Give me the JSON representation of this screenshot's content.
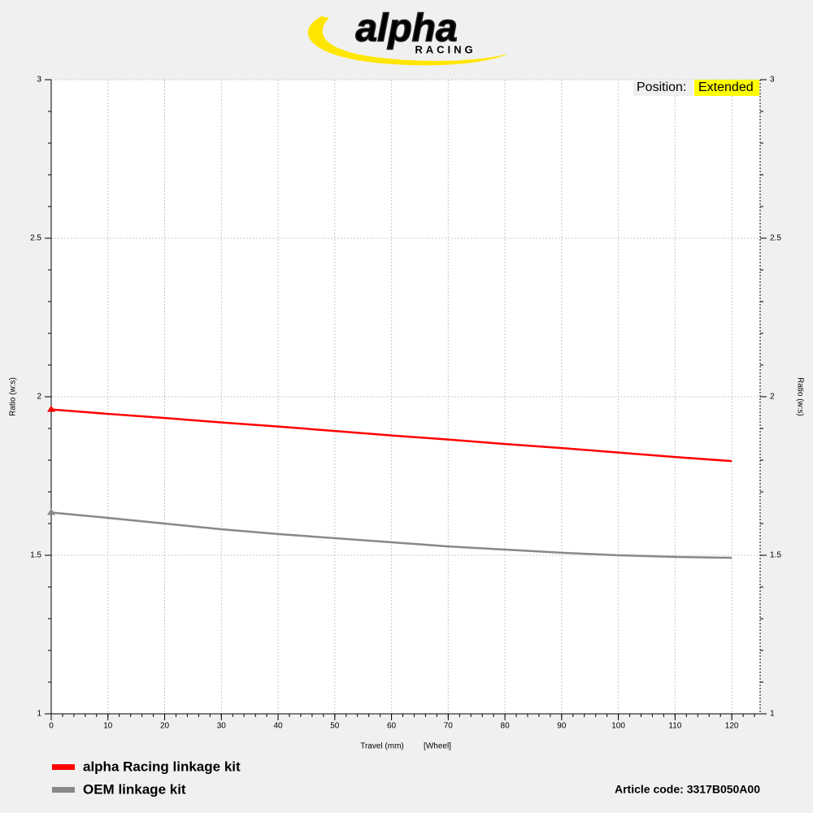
{
  "logo": {
    "name": "alpha",
    "sub": "RACING"
  },
  "position": {
    "label": "Position:",
    "value": "Extended"
  },
  "legend_entries": [
    "alpha Racing linkage kit",
    "OEM linkage kit"
  ],
  "article_code": "Article code: 3317B050A00",
  "chart_data": {
    "type": "line",
    "x_label": "Travel (mm)",
    "x_label_note": "[Wheel]",
    "y_label": "Ratio (w:s)",
    "x": [
      0,
      10,
      20,
      30,
      40,
      50,
      60,
      70,
      80,
      90,
      100,
      110,
      120
    ],
    "series": [
      {
        "name": "alpha Racing linkage kit",
        "color": "#ff0000",
        "values": [
          1.96,
          1.946,
          1.933,
          1.919,
          1.906,
          1.892,
          1.878,
          1.865,
          1.851,
          1.838,
          1.824,
          1.81,
          1.797
        ]
      },
      {
        "name": "OEM linkage kit",
        "color": "#888888",
        "values": [
          1.635,
          1.618,
          1.6,
          1.582,
          1.567,
          1.554,
          1.541,
          1.528,
          1.518,
          1.508,
          1.5,
          1.495,
          1.492
        ]
      }
    ],
    "xlim": [
      0,
      125
    ],
    "xticks": [
      0,
      10,
      20,
      30,
      40,
      50,
      60,
      70,
      80,
      90,
      100,
      110,
      120
    ],
    "ylim": [
      1,
      3
    ],
    "yticks": [
      1,
      1.5,
      2,
      2.5,
      3
    ],
    "y2lim": [
      1,
      3
    ],
    "y2ticks": [
      1,
      1.5,
      2,
      2.5,
      3
    ],
    "minor_step": {
      "x": 2,
      "y": 0.1
    },
    "grid": true
  }
}
